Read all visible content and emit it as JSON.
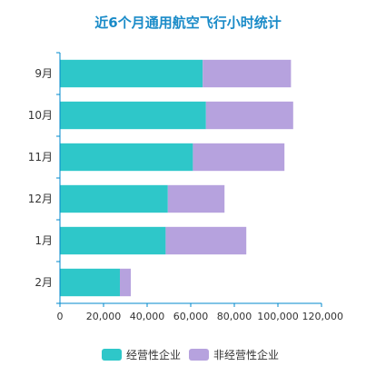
{
  "chart_data": {
    "type": "bar",
    "orientation": "horizontal",
    "stacked": true,
    "title": "近6个月通用航空飞行小时统计",
    "categories": [
      "9月",
      "10月",
      "11月",
      "12月",
      "1月",
      "2月"
    ],
    "series": [
      {
        "name": "经营性企业",
        "values": [
          65500,
          67000,
          61000,
          49500,
          48500,
          27500
        ],
        "color": "#2ec7c9"
      },
      {
        "name": "非经营性企业",
        "values": [
          40500,
          40000,
          42000,
          26000,
          37000,
          5000
        ],
        "color": "#b6a2de"
      }
    ],
    "xlim": [
      0,
      120000
    ],
    "xticks": [
      "0",
      "20,000",
      "40,000",
      "60,000",
      "80,000",
      "100,000",
      "120,000"
    ],
    "grid": false,
    "legend_position": "bottom",
    "title_color": "#1a8bc8",
    "axis_color": "#008acd"
  }
}
